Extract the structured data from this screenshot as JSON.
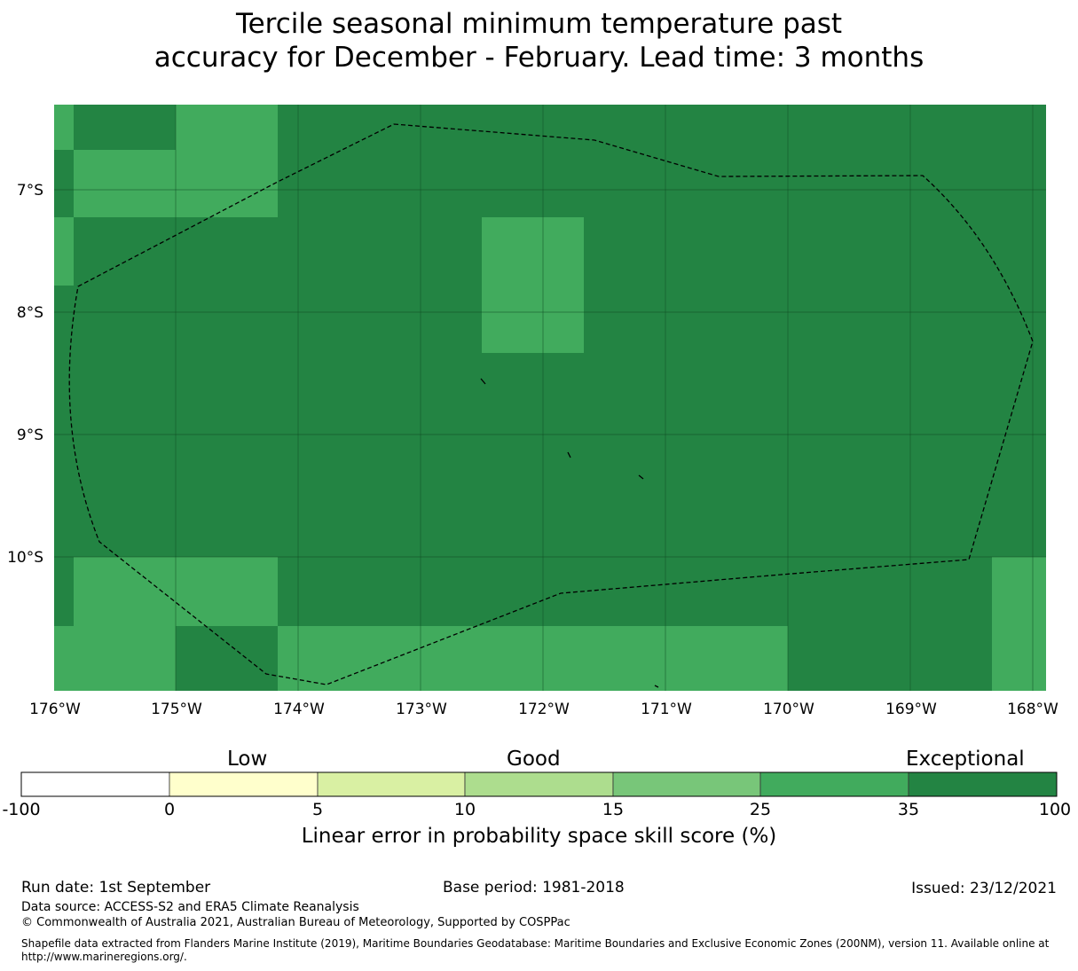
{
  "title": {
    "line1": "Tercile seasonal minimum temperature past",
    "line2": "accuracy for December - February. Lead time: 3 months"
  },
  "map": {
    "lon_labels": [
      "176°W",
      "175°W",
      "174°W",
      "173°W",
      "172°W",
      "171°W",
      "170°W",
      "169°W",
      "168°W"
    ],
    "lat_labels": [
      "7°S",
      "8°S",
      "9°S",
      "10°S"
    ],
    "lon_extent": [
      -176.0,
      -167.9
    ],
    "lat_extent": [
      -6.3,
      -11.1
    ],
    "grid_cell_colors": {
      "exceptional": "#238443",
      "very_good": "#41ab5d"
    },
    "boundary": "EEZ outline (dashed)"
  },
  "colorbar": {
    "category_labels": {
      "low": "Low",
      "good": "Good",
      "exceptional": "Exceptional"
    },
    "ticks": [
      "-100",
      "0",
      "5",
      "10",
      "15",
      "25",
      "35",
      "100"
    ],
    "colors": [
      "#ffffff",
      "#ffffcc",
      "#d9f0a3",
      "#addd8e",
      "#78c679",
      "#41ab5d",
      "#238443"
    ],
    "title": "Linear error in probability space skill score (%)"
  },
  "footer": {
    "run_date": "Run date: 1st September",
    "base_period": "Base period: 1981-2018",
    "issued": "Issued: 23/12/2021",
    "data_source": "Data source: ACCESS-S2 and ERA5 Climate Reanalysis",
    "copyright": "© Commonwealth of Australia 2021, Australian Bureau of Meteorology, Supported by COSPPac",
    "shapefile": "Shapefile data extracted from Flanders Marine Institute (2019), Maritime Boundaries Geodatabase: Maritime Boundaries and Exclusive Economic Zones (200NM), version 11. Available online at http://www.marineregions.org/."
  }
}
